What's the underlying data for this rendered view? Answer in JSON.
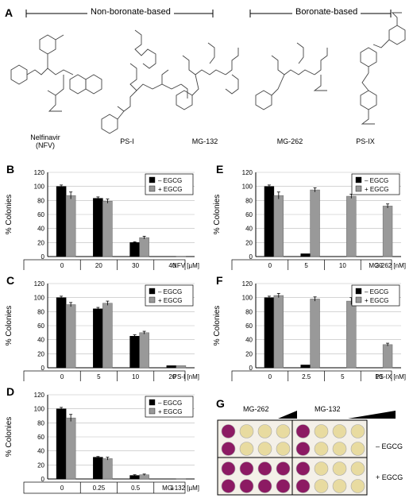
{
  "panel_labels": [
    "A",
    "B",
    "C",
    "D",
    "E",
    "F",
    "G"
  ],
  "panelA": {
    "groups": [
      {
        "label": "Non-boronate-based"
      },
      {
        "label": "Boronate-based"
      }
    ],
    "molecules": [
      {
        "name": "Nelfinavir\n(NFV)"
      },
      {
        "name": "PS-I"
      },
      {
        "name": "MG-132"
      },
      {
        "name": "MG-262"
      },
      {
        "name": "PS-IX"
      }
    ]
  },
  "chart_data": [
    {
      "panel": "B",
      "type": "bar",
      "ylabel": "% Colonies",
      "xlabel": "NFV [µM]",
      "ylim": [
        0,
        120
      ],
      "yticks": [
        0,
        20,
        40,
        60,
        80,
        100,
        120
      ],
      "categories": [
        "0",
        "20",
        "30",
        "40"
      ],
      "series": [
        {
          "name": "– EGCG",
          "values": [
            100,
            83,
            20,
            0
          ],
          "errors": [
            2,
            2,
            1,
            0
          ]
        },
        {
          "name": "+ EGCG",
          "values": [
            87,
            79,
            27,
            0
          ],
          "errors": [
            5,
            3,
            2,
            0
          ]
        }
      ]
    },
    {
      "panel": "C",
      "type": "bar",
      "ylabel": "% Colonies",
      "xlabel": "PS-I [nM]",
      "ylim": [
        0,
        120
      ],
      "yticks": [
        0,
        20,
        40,
        60,
        80,
        100,
        120
      ],
      "categories": [
        "0",
        "5",
        "10",
        "20"
      ],
      "series": [
        {
          "name": "– EGCG",
          "values": [
            100,
            84,
            45,
            3
          ],
          "errors": [
            2,
            2,
            2,
            0
          ]
        },
        {
          "name": "+ EGCG",
          "values": [
            90,
            92,
            50,
            3
          ],
          "errors": [
            3,
            3,
            2,
            0
          ]
        }
      ]
    },
    {
      "panel": "D",
      "type": "bar",
      "ylabel": "% Colonies",
      "xlabel": "MG-132 [µM]",
      "ylim": [
        0,
        120
      ],
      "yticks": [
        0,
        20,
        40,
        60,
        80,
        100,
        120
      ],
      "categories": [
        "0",
        "0.25",
        "0.5",
        "1"
      ],
      "series": [
        {
          "name": "– EGCG",
          "values": [
            100,
            31,
            5,
            0
          ],
          "errors": [
            2,
            1,
            1,
            0
          ]
        },
        {
          "name": "+ EGCG",
          "values": [
            87,
            29,
            6,
            0
          ],
          "errors": [
            5,
            2,
            1,
            0
          ]
        }
      ]
    },
    {
      "panel": "E",
      "type": "bar",
      "ylabel": "% Colonies",
      "xlabel": "MG-262 [nM]",
      "ylim": [
        0,
        120
      ],
      "yticks": [
        0,
        20,
        40,
        60,
        80,
        100,
        120
      ],
      "categories": [
        "0",
        "5",
        "10",
        "20"
      ],
      "series": [
        {
          "name": "– EGCG",
          "values": [
            100,
            4,
            0,
            0
          ],
          "errors": [
            2,
            0,
            0,
            0
          ]
        },
        {
          "name": "+ EGCG",
          "values": [
            87,
            95,
            86,
            72
          ],
          "errors": [
            5,
            3,
            3,
            3
          ]
        }
      ]
    },
    {
      "panel": "F",
      "type": "bar",
      "ylabel": "% Colonies",
      "xlabel": "PS-IX [nM]",
      "ylim": [
        0,
        120
      ],
      "yticks": [
        0,
        20,
        40,
        60,
        80,
        100,
        120
      ],
      "categories": [
        "0",
        "2.5",
        "5",
        "10"
      ],
      "series": [
        {
          "name": "– EGCG",
          "values": [
            100,
            4,
            0,
            0
          ],
          "errors": [
            2,
            0,
            0,
            0
          ]
        },
        {
          "name": "+ EGCG",
          "values": [
            103,
            98,
            95,
            33
          ],
          "errors": [
            3,
            3,
            5,
            2
          ]
        }
      ]
    }
  ],
  "panelG": {
    "column_labels": [
      "MG-262",
      "MG-132"
    ],
    "row_labels": [
      "– EGCG",
      "+ EGCG"
    ],
    "colors": {
      "purple": "#8c1a63",
      "light": "#e8dba0",
      "frame": "#000000"
    },
    "wells": [
      [
        "purple",
        "light",
        "light",
        "light",
        "purple",
        "light",
        "light",
        "light"
      ],
      [
        "purple",
        "light",
        "light",
        "light",
        "purple",
        "light",
        "light",
        "light"
      ],
      [
        "purple",
        "purple",
        "purple",
        "purple",
        "purple",
        "light",
        "light",
        "light"
      ],
      [
        "purple",
        "purple",
        "purple",
        "purple",
        "purple",
        "light",
        "light",
        "light"
      ]
    ]
  }
}
